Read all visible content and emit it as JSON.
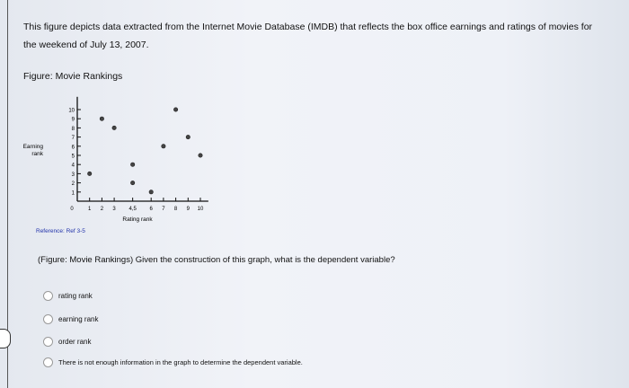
{
  "intro": "This figure depicts data extracted from the Internet Movie Database (IMDB) that reflects the box office earnings and ratings of movies for the weekend of July 13, 2007.",
  "figure_label": "Figure: Movie Rankings",
  "reference": "Reference: Ref 3-5",
  "question": "(Figure: Movie Rankings) Given the construction of this graph, what is the dependent variable?",
  "options": [
    "rating rank",
    "earning rank",
    "order rank",
    "There is not enough information in the graph to determine the dependent variable."
  ],
  "chart_data": {
    "type": "scatter",
    "xlabel": "Rating rank",
    "ylabel": "Earning rank",
    "x_ticks": [
      "0",
      "1",
      "2",
      "3",
      "4,5",
      "6",
      "7",
      "8",
      "9",
      "10"
    ],
    "y_ticks": [
      "1",
      "2",
      "3",
      "4",
      "5",
      "6",
      "7",
      "8",
      "9",
      "10"
    ],
    "xlim": [
      0,
      10.5
    ],
    "ylim": [
      0,
      11
    ],
    "points": [
      {
        "x": 1,
        "y": 3
      },
      {
        "x": 2,
        "y": 9
      },
      {
        "x": 3,
        "y": 8
      },
      {
        "x": 4.5,
        "y": 4
      },
      {
        "x": 4.5,
        "y": 2
      },
      {
        "x": 6,
        "y": 1
      },
      {
        "x": 7,
        "y": 6
      },
      {
        "x": 8,
        "y": 10
      },
      {
        "x": 9,
        "y": 7
      },
      {
        "x": 10,
        "y": 5
      }
    ],
    "grid": false
  }
}
